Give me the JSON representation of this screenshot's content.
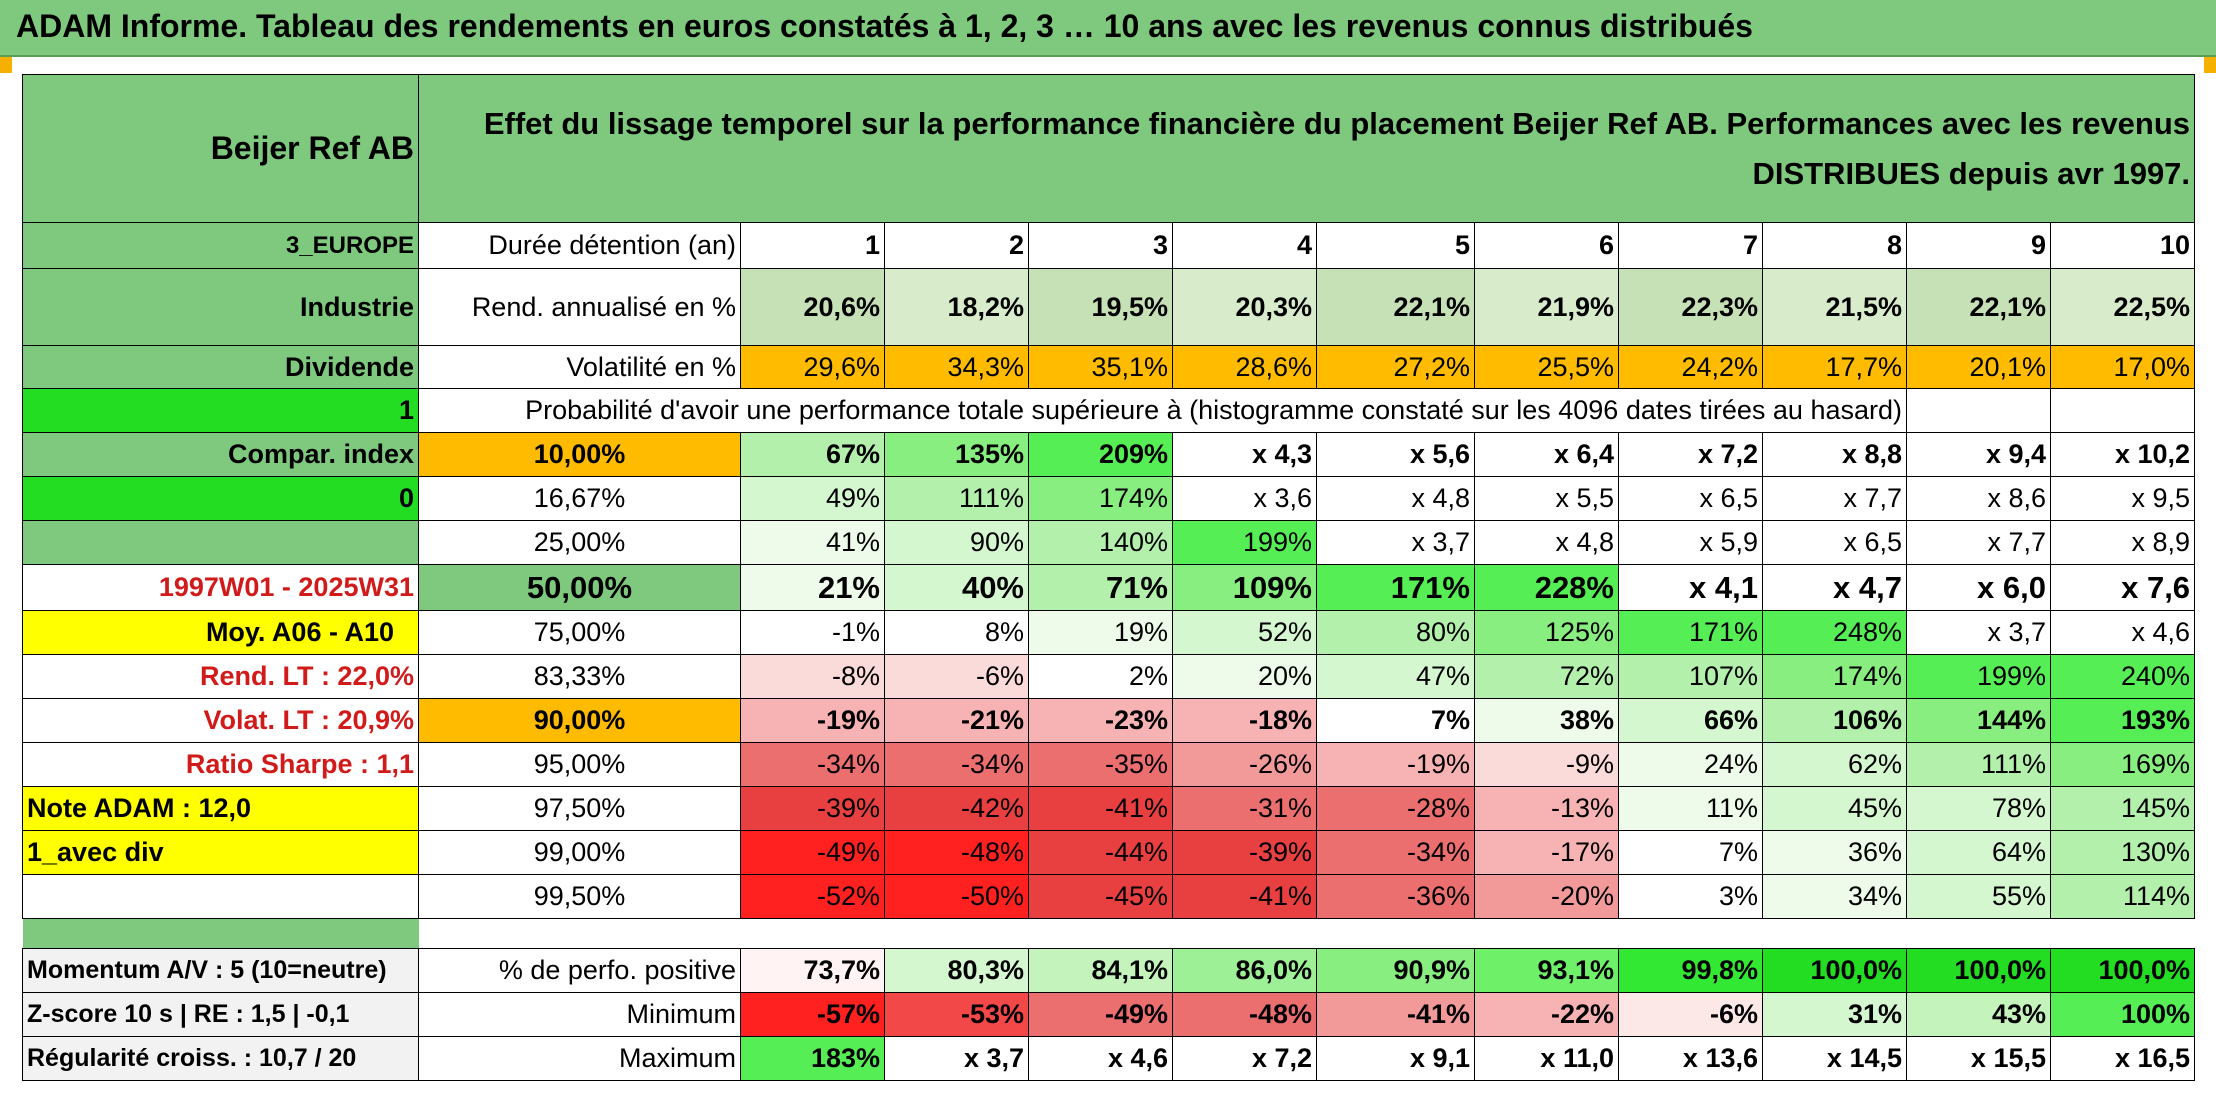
{
  "title": "ADAM Informe. Tableau des rendements en euros constatés à 1, 2, 3 … 10 ans avec les revenus connus distribués",
  "fund": "Beijer Ref AB",
  "header_desc": "Effet du lissage temporel sur la performance financière du placement Beijer Ref AB. Performances avec les revenus DISTRIBUES depuis avr 1997.",
  "side": {
    "region": "3_EUROPE",
    "sector": "Industrie",
    "dividend_label": "Dividende",
    "dividend_value": "1",
    "compar_label": "Compar. index",
    "compar_value": "0",
    "period": "1997W01 - 2025W31",
    "moy": "Moy. A06 - A10",
    "rend_lt": "Rend. LT :    22,0%",
    "volat_lt": "Volat. LT :    20,9%",
    "sharpe": "Ratio Sharpe :    1,1",
    "note": "Note ADAM : 12,0",
    "avec_div": "1_avec div"
  },
  "row_labels": {
    "duration": "Durée détention (an)",
    "rend": "Rend. annualisé en %",
    "volat": "Volatilité en %"
  },
  "years": [
    "1",
    "2",
    "3",
    "4",
    "5",
    "6",
    "7",
    "8",
    "9",
    "10"
  ],
  "rend": [
    "20,6%",
    "18,2%",
    "19,5%",
    "20,3%",
    "22,1%",
    "21,9%",
    "22,3%",
    "21,5%",
    "22,1%",
    "22,5%"
  ],
  "volat": [
    "29,6%",
    "34,3%",
    "35,1%",
    "28,6%",
    "27,2%",
    "25,5%",
    "24,2%",
    "17,7%",
    "20,1%",
    "17,0%"
  ],
  "proba_title": "Probabilité d'avoir une performance totale supérieure à (histogramme constaté sur les 4096 dates tirées au hasard)",
  "proba_rows": [
    {
      "p": "10,00%",
      "v": [
        "67%",
        "135%",
        "209%",
        "x 4,3",
        "x 5,6",
        "x 6,4",
        "x 7,2",
        "x 8,8",
        "x 9,4",
        "x 10,2"
      ]
    },
    {
      "p": "16,67%",
      "v": [
        "49%",
        "111%",
        "174%",
        "x 3,6",
        "x 4,8",
        "x 5,5",
        "x 6,5",
        "x 7,7",
        "x 8,6",
        "x 9,5"
      ]
    },
    {
      "p": "25,00%",
      "v": [
        "41%",
        "90%",
        "140%",
        "199%",
        "x 3,7",
        "x 4,8",
        "x 5,9",
        "x 6,5",
        "x 7,7",
        "x 8,9"
      ]
    },
    {
      "p": "50,00%",
      "v": [
        "21%",
        "40%",
        "71%",
        "109%",
        "171%",
        "228%",
        "x 4,1",
        "x 4,7",
        "x 6,0",
        "x 7,6"
      ]
    },
    {
      "p": "75,00%",
      "v": [
        "-1%",
        "8%",
        "19%",
        "52%",
        "80%",
        "125%",
        "171%",
        "248%",
        "x 3,7",
        "x 4,6"
      ]
    },
    {
      "p": "83,33%",
      "v": [
        "-8%",
        "-6%",
        "2%",
        "20%",
        "47%",
        "72%",
        "107%",
        "174%",
        "199%",
        "240%"
      ]
    },
    {
      "p": "90,00%",
      "v": [
        "-19%",
        "-21%",
        "-23%",
        "-18%",
        "7%",
        "38%",
        "66%",
        "106%",
        "144%",
        "193%"
      ]
    },
    {
      "p": "95,00%",
      "v": [
        "-34%",
        "-34%",
        "-35%",
        "-26%",
        "-19%",
        "-9%",
        "24%",
        "62%",
        "111%",
        "169%"
      ]
    },
    {
      "p": "97,50%",
      "v": [
        "-39%",
        "-42%",
        "-41%",
        "-31%",
        "-28%",
        "-13%",
        "11%",
        "45%",
        "78%",
        "145%"
      ]
    },
    {
      "p": "99,00%",
      "v": [
        "-49%",
        "-48%",
        "-44%",
        "-39%",
        "-34%",
        "-17%",
        "7%",
        "36%",
        "64%",
        "130%"
      ]
    },
    {
      "p": "99,50%",
      "v": [
        "-52%",
        "-50%",
        "-45%",
        "-41%",
        "-36%",
        "-20%",
        "3%",
        "34%",
        "55%",
        "114%"
      ]
    }
  ],
  "bottom": {
    "momentum": "Momentum A/V : 5 (10=neutre)",
    "zscore": "Z-score 10 s | RE : 1,5 | -0,1",
    "regularite": "Régularité croiss. : 10,7 / 20",
    "pos_label": "% de perfo. positive",
    "min_label": "Minimum",
    "max_label": "Maximum",
    "pos": [
      "73,7%",
      "80,3%",
      "84,1%",
      "86,0%",
      "90,9%",
      "93,1%",
      "99,8%",
      "100,0%",
      "100,0%",
      "100,0%"
    ],
    "min": [
      "-57%",
      "-53%",
      "-49%",
      "-48%",
      "-41%",
      "-22%",
      "-6%",
      "31%",
      "43%",
      "100%"
    ],
    "max": [
      "183%",
      "x 3,7",
      "x 4,6",
      "x 7,2",
      "x 9,1",
      "x 11,0",
      "x 13,6",
      "x 14,5",
      "x 15,5",
      "x 16,5"
    ]
  },
  "colors": {
    "header_green": "#7ec97e",
    "bright_green": "#22dd22",
    "orange": "#ffbb00",
    "yellow": "#ffff00",
    "red_text": "#d11a1a"
  }
}
